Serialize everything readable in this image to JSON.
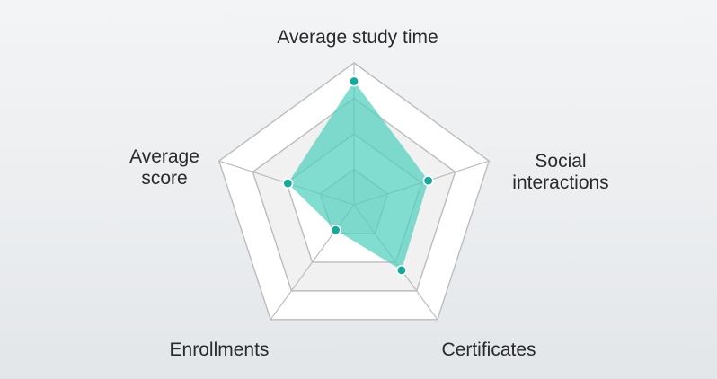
{
  "chart_data": {
    "type": "radar",
    "axes": [
      {
        "label_lines": [
          "Average study time"
        ]
      },
      {
        "label_lines": [
          "Social",
          "interactions"
        ]
      },
      {
        "label_lines": [
          "Certificates"
        ]
      },
      {
        "label_lines": [
          "Enrollments"
        ]
      },
      {
        "label_lines": [
          "Average",
          "score"
        ]
      }
    ],
    "rings": 4,
    "max": 1,
    "series": [
      {
        "values": [
          0.87,
          0.55,
          0.57,
          0.22,
          0.49
        ]
      }
    ],
    "grid": true,
    "legend": "none",
    "colors": {
      "fill": "#4fd0be",
      "fill_opacity": 0.72,
      "point": "#13aa9c",
      "grid_stroke": "#bcbcbc",
      "ring_light": "#ffffff",
      "ring_shade": "#f1f1f1",
      "label": "#2a2a2a"
    }
  }
}
